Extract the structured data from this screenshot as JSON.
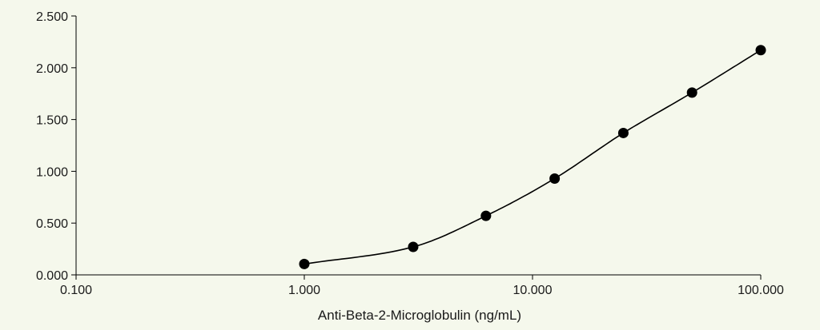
{
  "chart_data": {
    "type": "scatter",
    "title": "",
    "xlabel": "Anti-Beta-2-Microglobulin (ng/mL)",
    "ylabel": "",
    "x_scale": "log",
    "xlim": [
      0.1,
      100
    ],
    "ylim": [
      0,
      2.5
    ],
    "x_ticks": [
      0.1,
      1,
      10,
      100
    ],
    "x_tick_labels": [
      "0.100",
      "1.000",
      "10.000",
      "100.000"
    ],
    "y_ticks": [
      0,
      0.5,
      1,
      1.5,
      2,
      2.5
    ],
    "y_tick_labels": [
      "0.000",
      "0.500",
      "1.000",
      "1.500",
      "2.000",
      "2.500"
    ],
    "grid": false,
    "series": [
      {
        "x": [
          1,
          3,
          6.25,
          12.5,
          25,
          50,
          100
        ],
        "y": [
          0.105,
          0.27,
          0.57,
          0.93,
          1.37,
          1.76,
          2.17
        ]
      }
    ],
    "fit_curve": true,
    "colors": {
      "background": "#f5f8ec",
      "marker": "#000000",
      "line": "#000000"
    }
  }
}
